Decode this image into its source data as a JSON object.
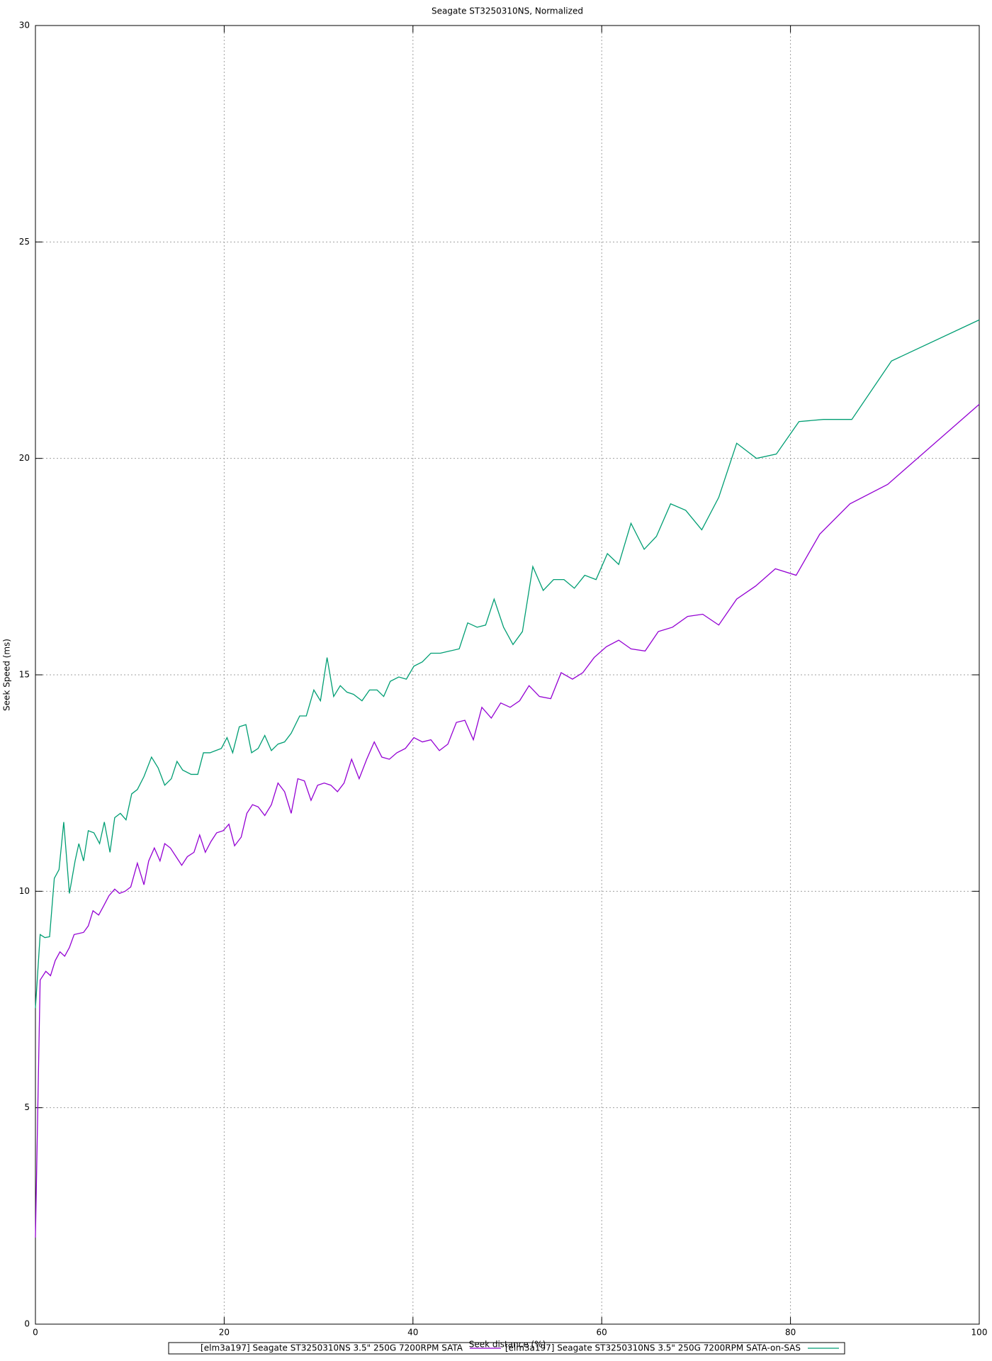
{
  "chart_data": {
    "type": "line",
    "title": "Seagate ST3250310NS, Normalized",
    "xlabel": "Seek distance (%)",
    "ylabel": "Seek Speed (ms)",
    "xlim": [
      0,
      100
    ],
    "xticks": [
      0,
      20,
      40,
      60,
      80,
      100
    ],
    "ylim": [
      0,
      30
    ],
    "yticks": [
      0,
      5,
      10,
      15,
      20,
      25,
      30
    ],
    "grid": true,
    "legend": "below",
    "series": [
      {
        "name": "[elm3a197] Seagate ST3250310NS 3.5\" 250G 7200RPM SATA",
        "color": "#9400d3",
        "x": [
          0,
          0.5,
          1.1,
          1.6,
          2.1,
          2.6,
          3.1,
          3.6,
          4.1,
          5.1,
          5.6,
          6.1,
          6.7,
          7.2,
          7.8,
          8.4,
          8.9,
          9.5,
          10.1,
          10.8,
          11.5,
          12.0,
          12.6,
          13.2,
          13.7,
          14.3,
          14.9,
          15.5,
          16.1,
          16.8,
          17.4,
          18.0,
          18.6,
          19.2,
          19.9,
          20.5,
          21.1,
          21.8,
          22.4,
          23.0,
          23.6,
          24.3,
          25.0,
          25.7,
          26.4,
          27.1,
          27.8,
          28.5,
          29.2,
          29.9,
          30.6,
          31.3,
          32.0,
          32.7,
          33.5,
          34.3,
          35.1,
          35.9,
          36.7,
          37.5,
          38.3,
          39.2,
          40.1,
          41.0,
          41.9,
          42.8,
          43.7,
          44.6,
          45.5,
          46.4,
          47.3,
          48.3,
          49.3,
          50.3,
          51.3,
          52.3,
          53.4,
          54.6,
          55.7,
          56.9,
          58.0,
          59.2,
          60.5,
          61.8,
          63.1,
          64.6,
          66.0,
          67.5,
          69.1,
          70.7,
          72.4,
          74.3,
          76.3,
          78.4,
          80.6,
          83.1,
          86.3,
          90.3,
          100
        ],
        "values": [
          2.0,
          7.95,
          8.15,
          8.05,
          8.4,
          8.6,
          8.5,
          8.7,
          9.0,
          9.05,
          9.2,
          9.55,
          9.45,
          9.65,
          9.9,
          10.05,
          9.95,
          10.0,
          10.1,
          10.65,
          10.15,
          10.7,
          11.0,
          10.7,
          11.1,
          11.0,
          10.8,
          10.6,
          10.8,
          10.9,
          11.3,
          10.9,
          11.15,
          11.35,
          11.4,
          11.55,
          11.05,
          11.25,
          11.8,
          12.0,
          11.95,
          11.75,
          12.0,
          12.5,
          12.3,
          11.8,
          12.6,
          12.55,
          12.1,
          12.45,
          12.5,
          12.45,
          12.3,
          12.5,
          13.05,
          12.6,
          13.05,
          13.45,
          13.1,
          13.05,
          13.2,
          13.3,
          13.55,
          13.45,
          13.5,
          13.25,
          13.4,
          13.9,
          13.95,
          13.5,
          14.25,
          14.0,
          14.35,
          14.25,
          14.4,
          14.75,
          14.5,
          14.45,
          15.05,
          14.9,
          15.05,
          15.4,
          15.65,
          15.8,
          15.6,
          15.55,
          16.0,
          16.1,
          16.35,
          16.4,
          16.15,
          16.75,
          17.05,
          17.45,
          17.3,
          18.25,
          18.95,
          19.4,
          21.25
        ]
      },
      {
        "name": "[elm3a197] Seagate ST3250310NS 3.5\" 250G 7200RPM SATA-on-SAS",
        "color": "#009e73",
        "x": [
          0,
          0.5,
          1.0,
          1.5,
          2.0,
          2.5,
          3.0,
          3.6,
          4.2,
          4.6,
          5.1,
          5.6,
          6.2,
          6.8,
          7.3,
          7.9,
          8.4,
          9.0,
          9.6,
          10.2,
          10.8,
          11.5,
          12.3,
          13.0,
          13.7,
          14.4,
          15.0,
          15.6,
          16.5,
          17.2,
          17.8,
          18.5,
          19.1,
          19.7,
          20.3,
          20.9,
          21.6,
          22.3,
          22.9,
          23.6,
          24.3,
          25.0,
          25.7,
          26.4,
          27.1,
          28.0,
          28.7,
          29.5,
          30.2,
          30.9,
          31.6,
          32.3,
          33.0,
          33.7,
          34.6,
          35.4,
          36.2,
          36.9,
          37.6,
          38.5,
          39.3,
          40.1,
          41.0,
          41.9,
          42.9,
          43.9,
          44.9,
          45.8,
          46.8,
          47.7,
          48.6,
          49.6,
          50.6,
          51.6,
          52.7,
          53.8,
          54.9,
          56.0,
          57.1,
          58.2,
          59.4,
          60.6,
          61.8,
          63.1,
          64.5,
          65.8,
          67.3,
          68.9,
          70.6,
          72.4,
          74.3,
          76.4,
          78.5,
          80.9,
          83.5,
          86.5,
          90.7,
          100
        ],
        "values": [
          7.3,
          9.0,
          8.93,
          8.95,
          10.3,
          10.5,
          11.6,
          9.95,
          10.7,
          11.1,
          10.7,
          11.4,
          11.35,
          11.1,
          11.6,
          10.9,
          11.7,
          11.8,
          11.65,
          12.25,
          12.35,
          12.65,
          13.1,
          12.85,
          12.45,
          12.6,
          13.0,
          12.8,
          12.7,
          12.7,
          13.2,
          13.2,
          13.25,
          13.3,
          13.55,
          13.2,
          13.8,
          13.85,
          13.2,
          13.3,
          13.6,
          13.25,
          13.4,
          13.45,
          13.65,
          14.05,
          14.05,
          14.65,
          14.4,
          15.4,
          14.5,
          14.75,
          14.6,
          14.55,
          14.4,
          14.65,
          14.65,
          14.5,
          14.85,
          14.95,
          14.9,
          15.2,
          15.3,
          15.5,
          15.5,
          15.55,
          15.6,
          16.2,
          16.1,
          16.15,
          16.75,
          16.1,
          15.7,
          16.0,
          17.5,
          16.95,
          17.2,
          17.2,
          17.0,
          17.3,
          17.2,
          17.8,
          17.55,
          18.5,
          17.9,
          18.2,
          18.95,
          18.8,
          18.35,
          19.1,
          20.35,
          20.0,
          20.1,
          20.85,
          20.9,
          20.9,
          22.25,
          23.2
        ]
      }
    ]
  }
}
